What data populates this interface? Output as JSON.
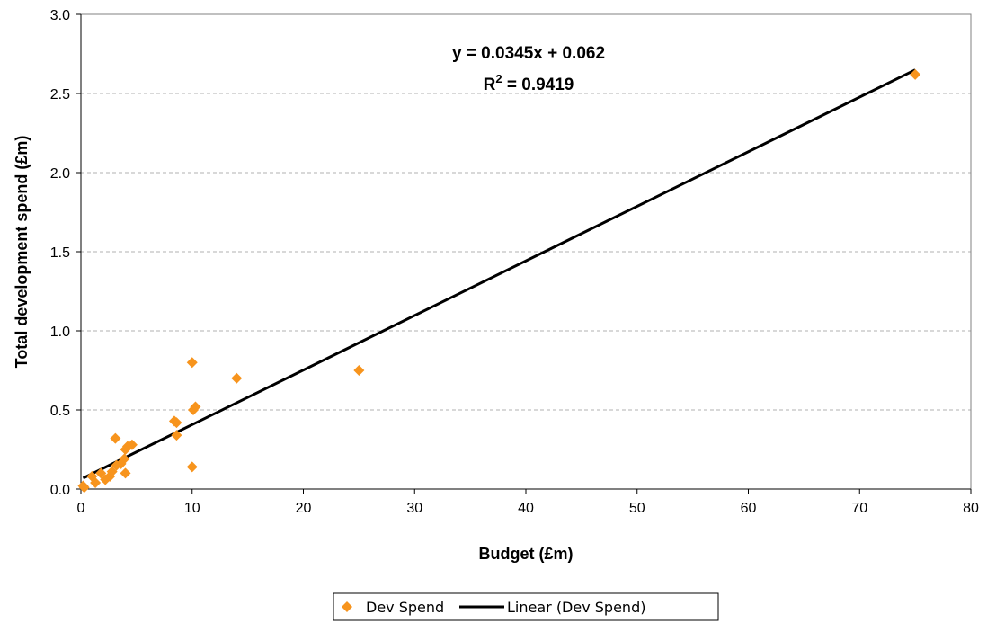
{
  "chart_data": {
    "type": "scatter",
    "title": "",
    "xlabel": "Budget (£m)",
    "ylabel": "Total development spend (£m)",
    "xlim": [
      0,
      80
    ],
    "ylim": [
      0,
      3.0
    ],
    "x_ticks": [
      0,
      10,
      20,
      30,
      40,
      50,
      60,
      70,
      80
    ],
    "y_ticks": [
      0.0,
      0.5,
      1.0,
      1.5,
      2.0,
      2.5,
      3.0
    ],
    "x_tick_labels": [
      "0",
      "10",
      "20",
      "30",
      "40",
      "50",
      "60",
      "70",
      "80"
    ],
    "y_tick_labels": [
      "0.0",
      "0.5",
      "1.0",
      "1.5",
      "2.0",
      "2.5",
      "3.0"
    ],
    "grid": "horizontal dashed",
    "legend_position": "bottom",
    "series": [
      {
        "name": "Dev Spend",
        "kind": "scatter",
        "color": "#F7941D",
        "marker": "diamond",
        "points": [
          [
            0.2,
            0.02
          ],
          [
            0.3,
            0.01
          ],
          [
            1.0,
            0.08
          ],
          [
            1.3,
            0.04
          ],
          [
            1.8,
            0.1
          ],
          [
            2.2,
            0.06
          ],
          [
            2.6,
            0.08
          ],
          [
            2.8,
            0.11
          ],
          [
            3.1,
            0.32
          ],
          [
            3.2,
            0.15
          ],
          [
            3.6,
            0.16
          ],
          [
            3.9,
            0.19
          ],
          [
            4.0,
            0.1
          ],
          [
            4.0,
            0.25
          ],
          [
            4.2,
            0.27
          ],
          [
            4.6,
            0.28
          ],
          [
            8.4,
            0.43
          ],
          [
            8.6,
            0.42
          ],
          [
            8.6,
            0.34
          ],
          [
            10.0,
            0.8
          ],
          [
            10.0,
            0.14
          ],
          [
            10.1,
            0.5
          ],
          [
            10.3,
            0.52
          ],
          [
            14.0,
            0.7
          ],
          [
            25.0,
            0.75
          ],
          [
            75.0,
            2.62
          ]
        ]
      },
      {
        "name": "Linear (Dev Spend)",
        "kind": "trendline",
        "color": "#000000",
        "slope": 0.0345,
        "intercept": 0.062,
        "x_range": [
          0.2,
          75
        ]
      }
    ],
    "annotations": {
      "equation": "y = 0.0345x + 0.062",
      "r2_base": "R",
      "r2_sup": "2",
      "r2_value": " = 0.9419"
    }
  }
}
